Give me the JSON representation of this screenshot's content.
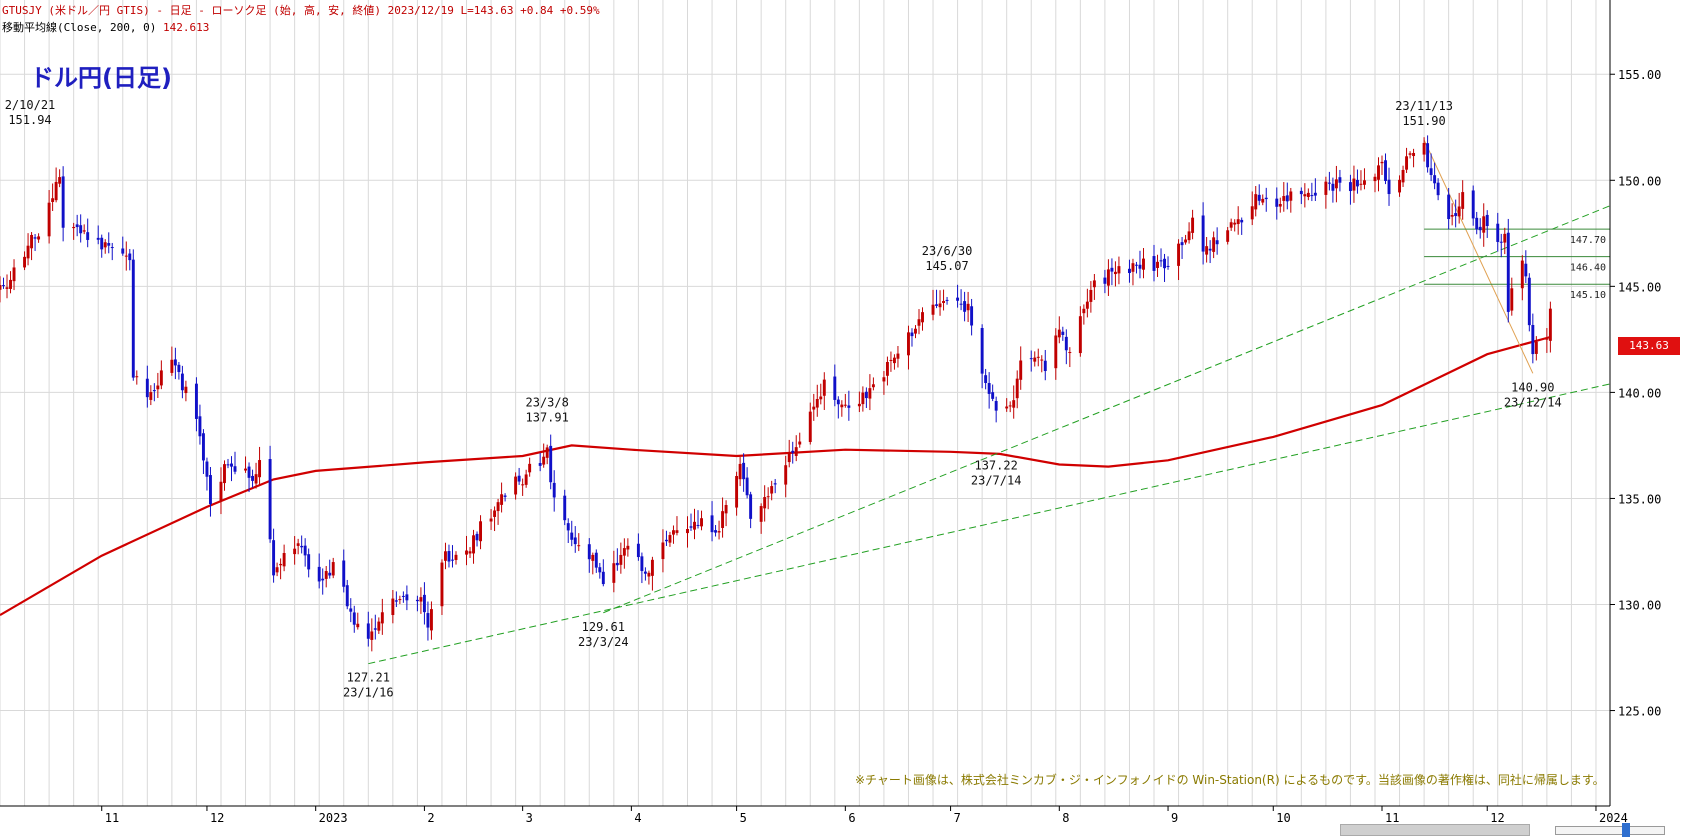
{
  "header": {
    "line1": "GTUSJY (米ドル／円 GTIS) - 日足 - ローソク足 (始, 高, 安, 終値)  2023/12/19 L=143.63 +0.84  +0.59%",
    "line2_label": "移動平均線(Close, 200, 0)",
    "line2_value": "142.613"
  },
  "title": "ドル円(日足)",
  "credit": "※チャート画像は、株式会社ミンカブ・ジ・インフォノイドの Win-Station(R) によるものです。当該画像の著作権は、同社に帰属します。",
  "last_price": "143.63",
  "colors": {
    "up": "#c00000",
    "down": "#1010c8",
    "ma": "#d00000",
    "trendline": "#22a022",
    "hline": "#3a8a3a",
    "fib": "#e0a050",
    "grid": "#d9d9d9"
  },
  "chart_data": {
    "type": "candlestick",
    "x_axis": {
      "type": "date",
      "start": "2022-10-03",
      "end": "2024-01-05",
      "month_labels": [
        {
          "date": "2022-11-01",
          "label": "11"
        },
        {
          "date": "2022-12-01",
          "label": "12"
        },
        {
          "date": "2023-01-01",
          "label": "2023"
        },
        {
          "date": "2023-02-01",
          "label": "2"
        },
        {
          "date": "2023-03-01",
          "label": "3"
        },
        {
          "date": "2023-04-01",
          "label": "4"
        },
        {
          "date": "2023-05-01",
          "label": "5"
        },
        {
          "date": "2023-06-01",
          "label": "6"
        },
        {
          "date": "2023-07-01",
          "label": "7"
        },
        {
          "date": "2023-08-01",
          "label": "8"
        },
        {
          "date": "2023-09-01",
          "label": "9"
        },
        {
          "date": "2023-10-01",
          "label": "10"
        },
        {
          "date": "2023-11-01",
          "label": "11"
        },
        {
          "date": "2023-12-01",
          "label": "12"
        },
        {
          "date": "2024-01-01",
          "label": "2024"
        }
      ]
    },
    "y_axis": {
      "min": 120.5,
      "max": 158.5,
      "ticks": [
        125.0,
        130.0,
        135.0,
        140.0,
        145.0,
        150.0,
        155.0
      ],
      "tick_labels": [
        "125.00",
        "130.00",
        "135.00",
        "140.00",
        "145.00",
        "150.00",
        "155.00"
      ]
    },
    "close_path": [
      {
        "date": "2022-10-03",
        "close": 144.8
      },
      {
        "date": "2022-10-10",
        "close": 146.5
      },
      {
        "date": "2022-10-17",
        "close": 148.6
      },
      {
        "date": "2022-10-20",
        "close": 150.2
      },
      {
        "date": "2022-10-21",
        "close": 147.6
      },
      {
        "date": "2022-10-28",
        "close": 147.4
      },
      {
        "date": "2022-11-04",
        "close": 146.6
      },
      {
        "date": "2022-11-09",
        "close": 146.4
      },
      {
        "date": "2022-11-10",
        "close": 141.0
      },
      {
        "date": "2022-11-15",
        "close": 139.7
      },
      {
        "date": "2022-11-21",
        "close": 141.8
      },
      {
        "date": "2022-11-28",
        "close": 138.6
      },
      {
        "date": "2022-12-02",
        "close": 134.8
      },
      {
        "date": "2022-12-07",
        "close": 136.8
      },
      {
        "date": "2022-12-14",
        "close": 135.8
      },
      {
        "date": "2022-12-16",
        "close": 136.7
      },
      {
        "date": "2022-12-20",
        "close": 131.7
      },
      {
        "date": "2022-12-26",
        "close": 132.9
      },
      {
        "date": "2023-01-03",
        "close": 130.8
      },
      {
        "date": "2023-01-06",
        "close": 132.1
      },
      {
        "date": "2023-01-12",
        "close": 129.1
      },
      {
        "date": "2023-01-16",
        "close": 128.5
      },
      {
        "date": "2023-01-23",
        "close": 130.5
      },
      {
        "date": "2023-01-31",
        "close": 130.1
      },
      {
        "date": "2023-02-02",
        "close": 128.7
      },
      {
        "date": "2023-02-06",
        "close": 132.2
      },
      {
        "date": "2023-02-14",
        "close": 132.8
      },
      {
        "date": "2023-02-22",
        "close": 134.9
      },
      {
        "date": "2023-03-01",
        "close": 136.0
      },
      {
        "date": "2023-03-08",
        "close": 137.2
      },
      {
        "date": "2023-03-10",
        "close": 135.0
      },
      {
        "date": "2023-03-15",
        "close": 133.0
      },
      {
        "date": "2023-03-21",
        "close": 132.3
      },
      {
        "date": "2023-03-24",
        "close": 130.8
      },
      {
        "date": "2023-03-31",
        "close": 132.8
      },
      {
        "date": "2023-04-05",
        "close": 131.3
      },
      {
        "date": "2023-04-14",
        "close": 133.8
      },
      {
        "date": "2023-04-26",
        "close": 133.7
      },
      {
        "date": "2023-05-02",
        "close": 136.5
      },
      {
        "date": "2023-05-05",
        "close": 134.2
      },
      {
        "date": "2023-05-12",
        "close": 135.7
      },
      {
        "date": "2023-05-19",
        "close": 138.0
      },
      {
        "date": "2023-05-26",
        "close": 140.5
      },
      {
        "date": "2023-05-31",
        "close": 139.3
      },
      {
        "date": "2023-06-07",
        "close": 139.9
      },
      {
        "date": "2023-06-16",
        "close": 141.8
      },
      {
        "date": "2023-06-23",
        "close": 143.7
      },
      {
        "date": "2023-06-30",
        "close": 144.3
      },
      {
        "date": "2023-07-06",
        "close": 144.0
      },
      {
        "date": "2023-07-10",
        "close": 141.2
      },
      {
        "date": "2023-07-14",
        "close": 138.8
      },
      {
        "date": "2023-07-19",
        "close": 139.6
      },
      {
        "date": "2023-07-21",
        "close": 141.7
      },
      {
        "date": "2023-07-28",
        "close": 141.2
      },
      {
        "date": "2023-08-01",
        "close": 143.3
      },
      {
        "date": "2023-08-04",
        "close": 141.8
      },
      {
        "date": "2023-08-10",
        "close": 144.8
      },
      {
        "date": "2023-08-17",
        "close": 145.8
      },
      {
        "date": "2023-08-24",
        "close": 146.0
      },
      {
        "date": "2023-08-29",
        "close": 146.0
      },
      {
        "date": "2023-09-01",
        "close": 146.2
      },
      {
        "date": "2023-09-08",
        "close": 147.9
      },
      {
        "date": "2023-09-11",
        "close": 146.6
      },
      {
        "date": "2023-09-19",
        "close": 147.8
      },
      {
        "date": "2023-09-27",
        "close": 149.2
      },
      {
        "date": "2023-10-03",
        "close": 149.0
      },
      {
        "date": "2023-10-06",
        "close": 149.3
      },
      {
        "date": "2023-10-13",
        "close": 149.6
      },
      {
        "date": "2023-10-20",
        "close": 149.9
      },
      {
        "date": "2023-10-27",
        "close": 149.7
      },
      {
        "date": "2023-11-01",
        "close": 150.9
      },
      {
        "date": "2023-11-03",
        "close": 149.4
      },
      {
        "date": "2023-11-10",
        "close": 151.4
      },
      {
        "date": "2023-11-13",
        "close": 151.6
      },
      {
        "date": "2023-11-14",
        "close": 150.4
      },
      {
        "date": "2023-11-17",
        "close": 149.6
      },
      {
        "date": "2023-11-21",
        "close": 148.1
      },
      {
        "date": "2023-11-24",
        "close": 149.4
      },
      {
        "date": "2023-11-28",
        "close": 147.5
      },
      {
        "date": "2023-11-30",
        "close": 148.2
      },
      {
        "date": "2023-12-04",
        "close": 147.1
      },
      {
        "date": "2023-12-06",
        "close": 147.3
      },
      {
        "date": "2023-12-07",
        "close": 144.1
      },
      {
        "date": "2023-12-08",
        "close": 144.9
      },
      {
        "date": "2023-12-11",
        "close": 146.2
      },
      {
        "date": "2023-12-12",
        "close": 145.4
      },
      {
        "date": "2023-12-13",
        "close": 142.9
      },
      {
        "date": "2023-12-14",
        "close": 141.9
      },
      {
        "date": "2023-12-15",
        "close": 142.2
      },
      {
        "date": "2023-12-18",
        "close": 142.8
      },
      {
        "date": "2023-12-19",
        "close": 143.63
      }
    ],
    "ma200": [
      {
        "date": "2022-10-03",
        "value": 129.5
      },
      {
        "date": "2022-11-01",
        "value": 132.3
      },
      {
        "date": "2022-12-01",
        "value": 134.6
      },
      {
        "date": "2022-12-20",
        "value": 135.9
      },
      {
        "date": "2023-01-01",
        "value": 136.3
      },
      {
        "date": "2023-02-01",
        "value": 136.7
      },
      {
        "date": "2023-03-01",
        "value": 137.0
      },
      {
        "date": "2023-03-15",
        "value": 137.5
      },
      {
        "date": "2023-04-01",
        "value": 137.3
      },
      {
        "date": "2023-05-01",
        "value": 137.0
      },
      {
        "date": "2023-06-01",
        "value": 137.3
      },
      {
        "date": "2023-07-01",
        "value": 137.2
      },
      {
        "date": "2023-07-15",
        "value": 137.1
      },
      {
        "date": "2023-08-01",
        "value": 136.6
      },
      {
        "date": "2023-08-15",
        "value": 136.5
      },
      {
        "date": "2023-09-01",
        "value": 136.8
      },
      {
        "date": "2023-10-01",
        "value": 137.9
      },
      {
        "date": "2023-11-01",
        "value": 139.4
      },
      {
        "date": "2023-12-01",
        "value": 141.8
      },
      {
        "date": "2023-12-19",
        "value": 142.613
      }
    ],
    "pivots": [
      {
        "kind": "high",
        "date": "2022-10-21",
        "price": 151.94,
        "label_top": "2/10/21",
        "label_bottom": "151.94"
      },
      {
        "kind": "low",
        "date": "2023-01-16",
        "price": 127.21,
        "label_top": "127.21",
        "label_bottom": "23/1/16"
      },
      {
        "kind": "high",
        "date": "2023-03-08",
        "price": 137.91,
        "label_top": "23/3/8",
        "label_bottom": "137.91"
      },
      {
        "kind": "low",
        "date": "2023-03-24",
        "price": 129.61,
        "label_top": "129.61",
        "label_bottom": "23/3/24"
      },
      {
        "kind": "high",
        "date": "2023-06-30",
        "price": 145.07,
        "label_top": "23/6/30",
        "label_bottom": "145.07"
      },
      {
        "kind": "low",
        "date": "2023-07-14",
        "price": 137.22,
        "label_top": "137.22",
        "label_bottom": "23/7/14"
      },
      {
        "kind": "high",
        "date": "2023-11-13",
        "price": 151.9,
        "label_top": "23/11/13",
        "label_bottom": "151.90"
      },
      {
        "kind": "low",
        "date": "2023-12-14",
        "price": 140.9,
        "label_top": "140.90",
        "label_bottom": "23/12/14"
      }
    ],
    "horizontal_levels": [
      {
        "price": 147.7,
        "label": "147.70",
        "from": "2023-11-13"
      },
      {
        "price": 146.4,
        "label": "146.40",
        "from": "2023-11-13"
      },
      {
        "price": 145.1,
        "label": "145.10",
        "from": "2023-11-13"
      }
    ],
    "trendlines": [
      {
        "style": "dashed",
        "from": {
          "date": "2023-03-24",
          "price": 129.61
        },
        "to": {
          "date": "2024-01-05",
          "price": 148.8
        }
      },
      {
        "style": "dashed",
        "from": {
          "date": "2023-01-16",
          "price": 127.21
        },
        "to": {
          "date": "2024-01-05",
          "price": 140.4
        }
      },
      {
        "style": "solid",
        "from": {
          "date": "2023-11-13",
          "price": 151.9
        },
        "to": {
          "date": "2023-12-14",
          "price": 140.9
        }
      }
    ]
  }
}
